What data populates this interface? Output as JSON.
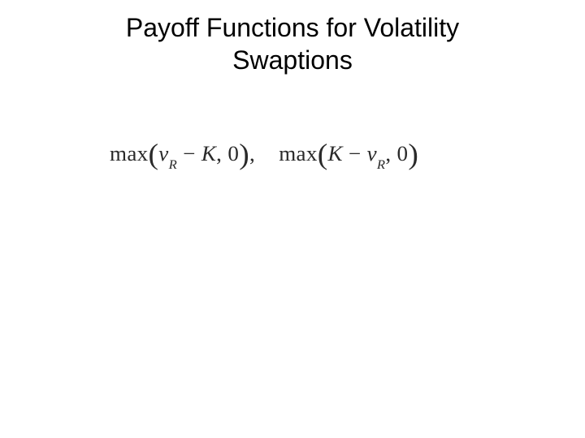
{
  "slide": {
    "title_line1": "Payoff Functions for Volatility",
    "title_line2": "Swaptions",
    "background_color": "#ffffff",
    "title_fontsize": 32,
    "title_color": "#000000"
  },
  "formula": {
    "fn_name": "max",
    "var_v": "v",
    "sub_R": "R",
    "var_K": "K",
    "minus": "−",
    "zero": "0",
    "comma": ",",
    "lparen": "(",
    "rparen": ")",
    "fontsize": 26,
    "color": "#2a2a2a",
    "font_family": "Times New Roman"
  }
}
